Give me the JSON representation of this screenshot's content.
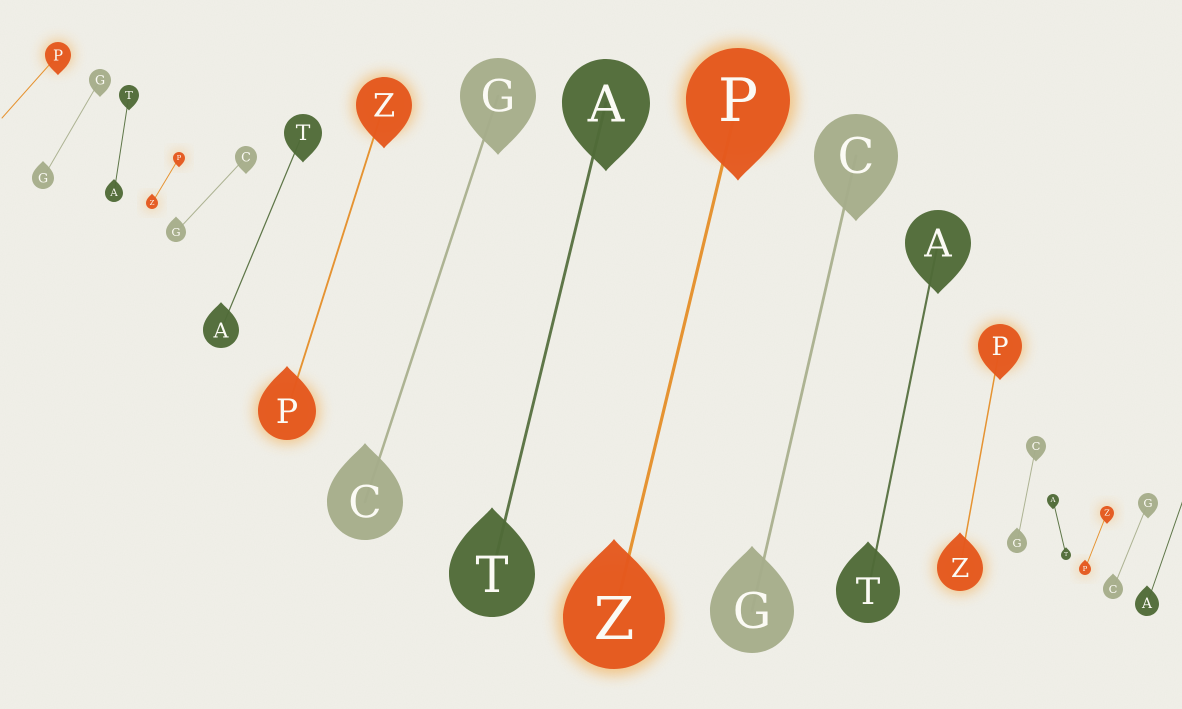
{
  "illustration": {
    "subject": "dna-double-helix",
    "palette": {
      "background": "#f1f0e9",
      "orange": "#e4571d",
      "dark_green": "#4f6a37",
      "sage": "#a6ad8a"
    },
    "base_pairs": [
      {
        "top": "P",
        "bottom": "",
        "top_color": "orange",
        "bottom_color": "orange"
      },
      {
        "top": "G",
        "bottom": "G",
        "top_color": "sage",
        "bottom_color": "sage"
      },
      {
        "top": "T",
        "bottom": "A",
        "top_color": "dark_green",
        "bottom_color": "dark_green"
      },
      {
        "top": "P",
        "bottom": "Z",
        "top_color": "orange",
        "bottom_color": "orange"
      },
      {
        "top": "C",
        "bottom": "G",
        "top_color": "sage",
        "bottom_color": "sage"
      },
      {
        "top": "T",
        "bottom": "A",
        "top_color": "dark_green",
        "bottom_color": "dark_green"
      },
      {
        "top": "Z",
        "bottom": "P",
        "top_color": "orange",
        "bottom_color": "orange"
      },
      {
        "top": "G",
        "bottom": "C",
        "top_color": "sage",
        "bottom_color": "sage"
      },
      {
        "top": "A",
        "bottom": "T",
        "top_color": "dark_green",
        "bottom_color": "dark_green"
      },
      {
        "top": "P",
        "bottom": "Z",
        "top_color": "orange",
        "bottom_color": "orange"
      },
      {
        "top": "C",
        "bottom": "G",
        "top_color": "sage",
        "bottom_color": "sage"
      },
      {
        "top": "A",
        "bottom": "T",
        "top_color": "dark_green",
        "bottom_color": "dark_green"
      },
      {
        "top": "P",
        "bottom": "Z",
        "top_color": "orange",
        "bottom_color": "orange"
      },
      {
        "top": "C",
        "bottom": "G",
        "top_color": "sage",
        "bottom_color": "sage"
      },
      {
        "top": "A",
        "bottom": "T",
        "top_color": "dark_green",
        "bottom_color": "dark_green"
      },
      {
        "top": "Z",
        "bottom": "P",
        "top_color": "orange",
        "bottom_color": "orange"
      },
      {
        "top": "G",
        "bottom": "C",
        "top_color": "sage",
        "bottom_color": "sage"
      },
      {
        "top": "",
        "bottom": "A",
        "top_color": "dark_green",
        "bottom_color": "dark_green"
      }
    ]
  }
}
